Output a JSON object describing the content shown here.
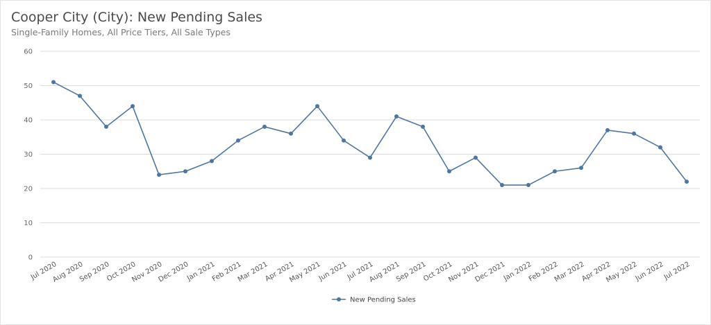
{
  "header": {
    "title": "Cooper City (City): New Pending Sales",
    "subtitle": "Single-Family Homes, All Price Tiers, All Sale Types"
  },
  "chart_data": {
    "type": "line",
    "title": "Cooper City (City): New Pending Sales",
    "subtitle": "Single-Family Homes, All Price Tiers, All Sale Types",
    "xlabel": "",
    "ylabel": "",
    "ylim": [
      0,
      60
    ],
    "yticks": [
      0,
      10,
      20,
      30,
      40,
      50,
      60
    ],
    "grid": true,
    "legend_position": "bottom-center",
    "color": "#4f76a0",
    "categories": [
      "Jul 2020",
      "Aug 2020",
      "Sep 2020",
      "Oct 2020",
      "Nov 2020",
      "Dec 2020",
      "Jan 2021",
      "Feb 2021",
      "Mar 2021",
      "Apr 2021",
      "May 2021",
      "Jun 2021",
      "Jul 2021",
      "Aug 2021",
      "Sep 2021",
      "Oct 2021",
      "Nov 2021",
      "Dec 2021",
      "Jan 2022",
      "Feb 2022",
      "Mar 2022",
      "Apr 2022",
      "May 2022",
      "Jun 2022",
      "Jul 2022"
    ],
    "series": [
      {
        "name": "New Pending Sales",
        "values": [
          51,
          47,
          38,
          44,
          24,
          25,
          28,
          34,
          38,
          36,
          44,
          34,
          29,
          41,
          38,
          25,
          29,
          21,
          21,
          25,
          26,
          37,
          36,
          32,
          22
        ]
      }
    ]
  }
}
